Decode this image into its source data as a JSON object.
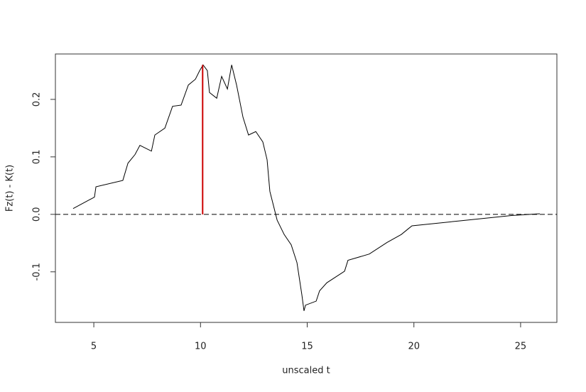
{
  "chart_data": {
    "type": "line",
    "xlabel": "unscaled t",
    "ylabel": "Fz(t) - K(t)",
    "x": [
      4.03,
      5.03,
      5.1,
      6.36,
      6.6,
      6.93,
      7.16,
      7.7,
      7.86,
      8.33,
      8.69,
      9.09,
      9.43,
      9.76,
      9.96,
      10.12,
      10.32,
      10.42,
      10.76,
      10.99,
      11.26,
      11.46,
      11.69,
      11.99,
      12.25,
      12.59,
      12.92,
      13.12,
      13.25,
      13.59,
      13.92,
      14.25,
      14.52,
      14.75,
      14.85,
      14.92,
      15.42,
      15.58,
      15.92,
      16.75,
      16.91,
      17.91,
      18.74,
      19.41,
      19.74,
      19.91,
      22.24,
      24.57,
      25.9
    ],
    "values": [
      0.01,
      0.03,
      0.048,
      0.059,
      0.089,
      0.104,
      0.12,
      0.11,
      0.138,
      0.15,
      0.188,
      0.19,
      0.225,
      0.235,
      0.25,
      0.26,
      0.25,
      0.212,
      0.202,
      0.24,
      0.218,
      0.26,
      0.225,
      0.169,
      0.138,
      0.144,
      0.126,
      0.095,
      0.04,
      -0.01,
      -0.035,
      -0.053,
      -0.084,
      -0.14,
      -0.168,
      -0.158,
      -0.151,
      -0.133,
      -0.119,
      -0.099,
      -0.08,
      -0.069,
      -0.049,
      -0.035,
      -0.025,
      -0.02,
      -0.011,
      -0.002,
      0.001
    ],
    "color": "#000000",
    "highlight": {
      "x": 10.1,
      "y0": 0,
      "y1": 0.26,
      "color": "#cc0000"
    },
    "hline": 0,
    "xlim": [
      3.2,
      26.7
    ],
    "ylim": [
      -0.188,
      0.279
    ],
    "xticks": [
      5,
      10,
      15,
      20,
      25
    ],
    "yticks": [
      -0.1,
      {
        "value": 0,
        "label": "0.0"
      },
      0.1,
      0.2
    ]
  }
}
